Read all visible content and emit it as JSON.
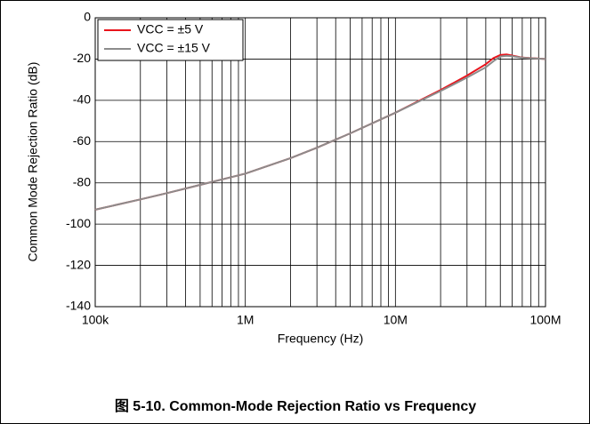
{
  "chart_data": {
    "type": "line",
    "caption": "图 5-10. Common-Mode Rejection Ratio vs Frequency",
    "xlabel": "Frequency (Hz)",
    "ylabel": "Common Mode Rejection Ratio (dB)",
    "xscale": "log",
    "grid": true,
    "legend": "upper left",
    "xlim": [
      100000,
      100000000
    ],
    "xticks": [
      {
        "value": 100000,
        "label": "100k"
      },
      {
        "value": 1000000,
        "label": "1M"
      },
      {
        "value": 10000000,
        "label": "10M"
      },
      {
        "value": 100000000,
        "label": "100M"
      }
    ],
    "xminorticks": [
      200000,
      300000,
      400000,
      500000,
      600000,
      700000,
      800000,
      900000,
      2000000,
      3000000,
      4000000,
      5000000,
      6000000,
      7000000,
      8000000,
      9000000,
      20000000,
      30000000,
      40000000,
      50000000,
      60000000,
      70000000,
      80000000,
      90000000
    ],
    "ylim": [
      -140,
      0
    ],
    "yticks": [
      -140,
      -120,
      -100,
      -80,
      -60,
      -40,
      -20,
      0
    ],
    "x": [
      100000,
      200000,
      300000,
      500000,
      1000000,
      2000000,
      3000000,
      5000000,
      10000000,
      20000000,
      30000000,
      40000000,
      45000000,
      50000000,
      55000000,
      60000000,
      70000000,
      100000000
    ],
    "series": [
      {
        "name": "VCC = ±5 V",
        "color": "#e8141c",
        "values": [
          -93,
          -88,
          -85,
          -81,
          -75.5,
          -68,
          -63,
          -56,
          -46,
          -35,
          -28,
          -22.5,
          -19.5,
          -18,
          -17.8,
          -18.3,
          -19.3,
          -20
        ]
      },
      {
        "name": "VCC = ±15 V",
        "color": "#8c8c8c",
        "values": [
          -93,
          -88,
          -85,
          -81,
          -75.5,
          -68,
          -63,
          -56,
          -46,
          -35.5,
          -29,
          -24,
          -21,
          -18.8,
          -18.4,
          -18.6,
          -19.4,
          -20
        ]
      }
    ]
  }
}
